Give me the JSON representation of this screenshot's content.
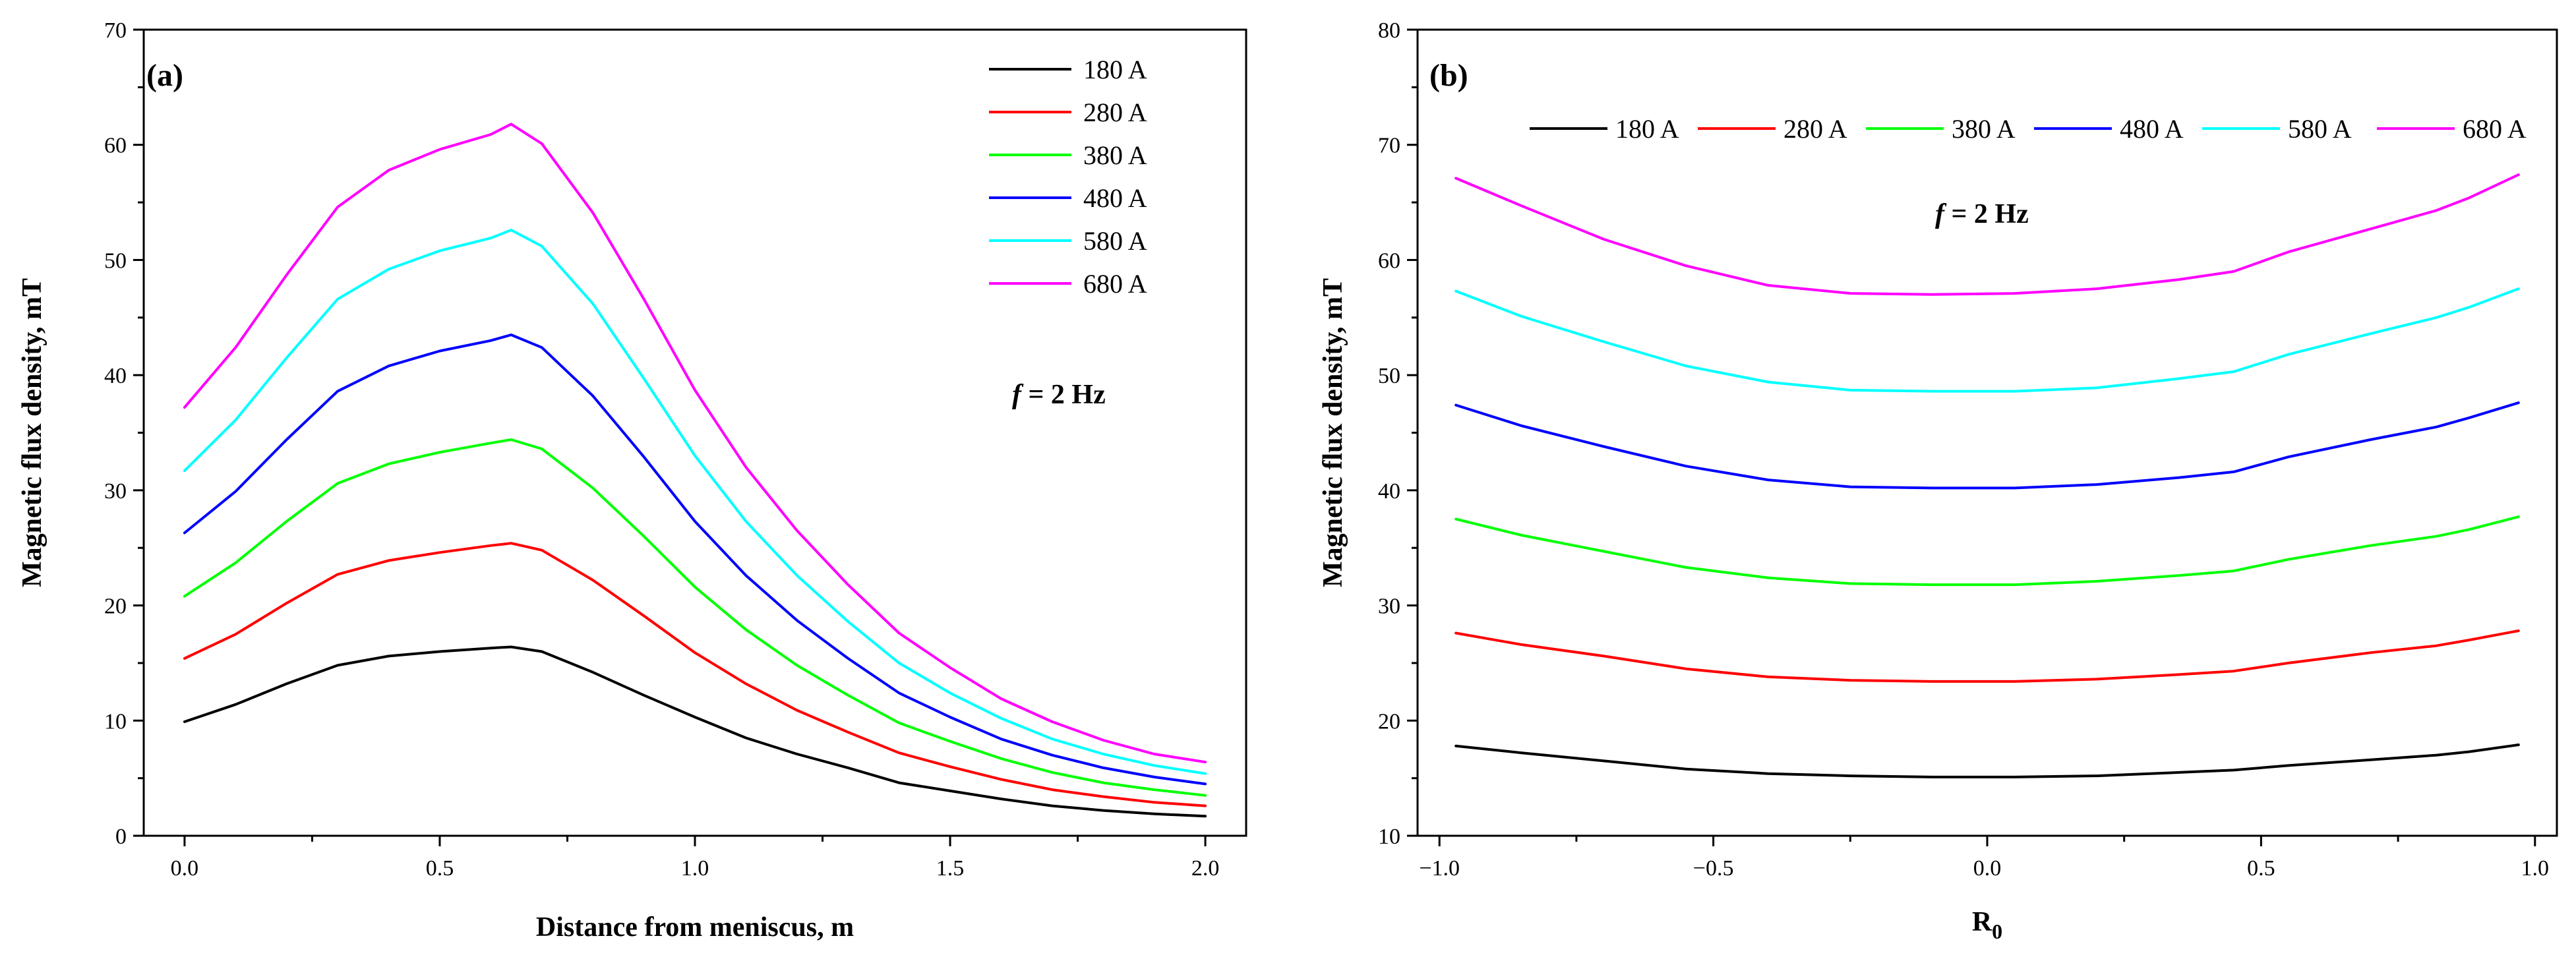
{
  "chart_data": [
    {
      "type": "line",
      "panel_label": "(a)",
      "xlabel": "Distance from meniscus, m",
      "ylabel": "Magnetic flux density, mT",
      "xlim": [
        -0.08,
        2.08
      ],
      "ylim": [
        0,
        70
      ],
      "xticks": [
        0.0,
        0.5,
        1.0,
        1.5,
        2.0
      ],
      "xtick_labels": [
        "0.0",
        "0.5",
        "1.0",
        "1.5",
        "2.0"
      ],
      "yticks": [
        0,
        10,
        20,
        30,
        40,
        50,
        60,
        70
      ],
      "ytick_labels": [
        "0",
        "10",
        "20",
        "30",
        "40",
        "50",
        "60",
        "70"
      ],
      "legend_position": "top-right",
      "legend_layout": "vertical",
      "annotation": {
        "italic": "f",
        "text": " = 2 Hz"
      },
      "x": [
        0.0,
        0.1,
        0.2,
        0.3,
        0.4,
        0.5,
        0.6,
        0.64,
        0.7,
        0.8,
        0.9,
        1.0,
        1.1,
        1.2,
        1.3,
        1.4,
        1.5,
        1.6,
        1.7,
        1.8,
        1.9,
        2.0
      ],
      "series": [
        {
          "name": "180 A",
          "color": "#000000",
          "values": [
            9.9,
            11.4,
            13.2,
            14.8,
            15.6,
            16.0,
            16.3,
            16.4,
            16.0,
            14.2,
            12.2,
            10.3,
            8.5,
            7.1,
            5.9,
            4.6,
            3.9,
            3.2,
            2.6,
            2.2,
            1.9,
            1.7
          ]
        },
        {
          "name": "280 A",
          "color": "#ff0000",
          "values": [
            15.4,
            17.5,
            20.2,
            22.7,
            23.9,
            24.6,
            25.2,
            25.4,
            24.8,
            22.2,
            19.1,
            15.9,
            13.2,
            10.9,
            9.0,
            7.2,
            6.0,
            4.9,
            4.0,
            3.4,
            2.9,
            2.6
          ]
        },
        {
          "name": "380 A",
          "color": "#00ff00",
          "values": [
            20.8,
            23.7,
            27.3,
            30.6,
            32.3,
            33.3,
            34.1,
            34.4,
            33.6,
            30.2,
            26.0,
            21.6,
            17.9,
            14.8,
            12.2,
            9.8,
            8.2,
            6.7,
            5.5,
            4.6,
            4.0,
            3.5
          ]
        },
        {
          "name": "480 A",
          "color": "#0000ff",
          "values": [
            26.3,
            29.9,
            34.4,
            38.6,
            40.8,
            42.1,
            43.0,
            43.5,
            42.4,
            38.2,
            32.9,
            27.3,
            22.6,
            18.7,
            15.4,
            12.4,
            10.3,
            8.4,
            7.0,
            5.9,
            5.1,
            4.5
          ]
        },
        {
          "name": "580 A",
          "color": "#00ffff",
          "values": [
            31.7,
            36.1,
            41.5,
            46.6,
            49.2,
            50.8,
            51.9,
            52.6,
            51.2,
            46.2,
            39.7,
            33.0,
            27.3,
            22.6,
            18.6,
            15.0,
            12.4,
            10.2,
            8.4,
            7.1,
            6.1,
            5.4
          ]
        },
        {
          "name": "680 A",
          "color": "#ff00ff",
          "values": [
            37.2,
            42.4,
            48.7,
            54.6,
            57.8,
            59.6,
            60.9,
            61.8,
            60.1,
            54.1,
            46.6,
            38.7,
            32.0,
            26.5,
            21.8,
            17.6,
            14.6,
            11.9,
            9.9,
            8.3,
            7.1,
            6.4
          ]
        }
      ]
    },
    {
      "type": "line",
      "panel_label": "(b)",
      "xlabel": "R",
      "xlabel_sub": "0",
      "ylabel": "Magnetic flux density, mT",
      "xlim": [
        -1.04,
        1.04
      ],
      "ylim": [
        10,
        80
      ],
      "xticks": [
        -1.0,
        -0.5,
        0.0,
        0.5,
        1.0
      ],
      "xtick_labels": [
        "−1.0",
        "−0.5",
        "0.0",
        "0.5",
        "1.0"
      ],
      "yticks": [
        10,
        20,
        30,
        40,
        50,
        60,
        70,
        80
      ],
      "ytick_labels": [
        "10",
        "20",
        "30",
        "40",
        "50",
        "60",
        "70",
        "80"
      ],
      "legend_position": "top",
      "legend_layout": "horizontal",
      "annotation": {
        "italic": "f",
        "text": " = 2 Hz"
      },
      "x": [
        -0.97,
        -0.85,
        -0.7,
        -0.55,
        -0.4,
        -0.25,
        -0.1,
        0.05,
        0.2,
        0.35,
        0.45,
        0.55,
        0.7,
        0.82,
        0.88,
        0.97
      ],
      "series": [
        {
          "name": "180 A",
          "color": "#000000",
          "values": [
            17.8,
            17.2,
            16.5,
            15.8,
            15.4,
            15.2,
            15.1,
            15.1,
            15.2,
            15.5,
            15.7,
            16.1,
            16.6,
            17.0,
            17.3,
            17.9
          ]
        },
        {
          "name": "280 A",
          "color": "#ff0000",
          "values": [
            27.6,
            26.6,
            25.6,
            24.5,
            23.8,
            23.5,
            23.4,
            23.4,
            23.6,
            24.0,
            24.3,
            25.0,
            25.9,
            26.5,
            27.0,
            27.8
          ]
        },
        {
          "name": "380 A",
          "color": "#00ff00",
          "values": [
            37.5,
            36.1,
            34.7,
            33.3,
            32.4,
            31.9,
            31.8,
            31.8,
            32.1,
            32.6,
            33.0,
            34.0,
            35.2,
            36.0,
            36.6,
            37.7
          ]
        },
        {
          "name": "480 A",
          "color": "#0000ff",
          "values": [
            47.4,
            45.6,
            43.8,
            42.1,
            40.9,
            40.3,
            40.2,
            40.2,
            40.5,
            41.1,
            41.6,
            42.9,
            44.4,
            45.5,
            46.3,
            47.6
          ]
        },
        {
          "name": "580 A",
          "color": "#00ffff",
          "values": [
            57.3,
            55.1,
            52.9,
            50.8,
            49.4,
            48.7,
            48.6,
            48.6,
            48.9,
            49.7,
            50.3,
            51.8,
            53.6,
            55.0,
            55.9,
            57.5
          ]
        },
        {
          "name": "680 A",
          "color": "#ff00ff",
          "values": [
            67.1,
            64.7,
            61.8,
            59.5,
            57.8,
            57.1,
            57.0,
            57.1,
            57.5,
            58.3,
            59.0,
            60.7,
            62.7,
            64.3,
            65.4,
            67.4
          ]
        }
      ]
    }
  ]
}
